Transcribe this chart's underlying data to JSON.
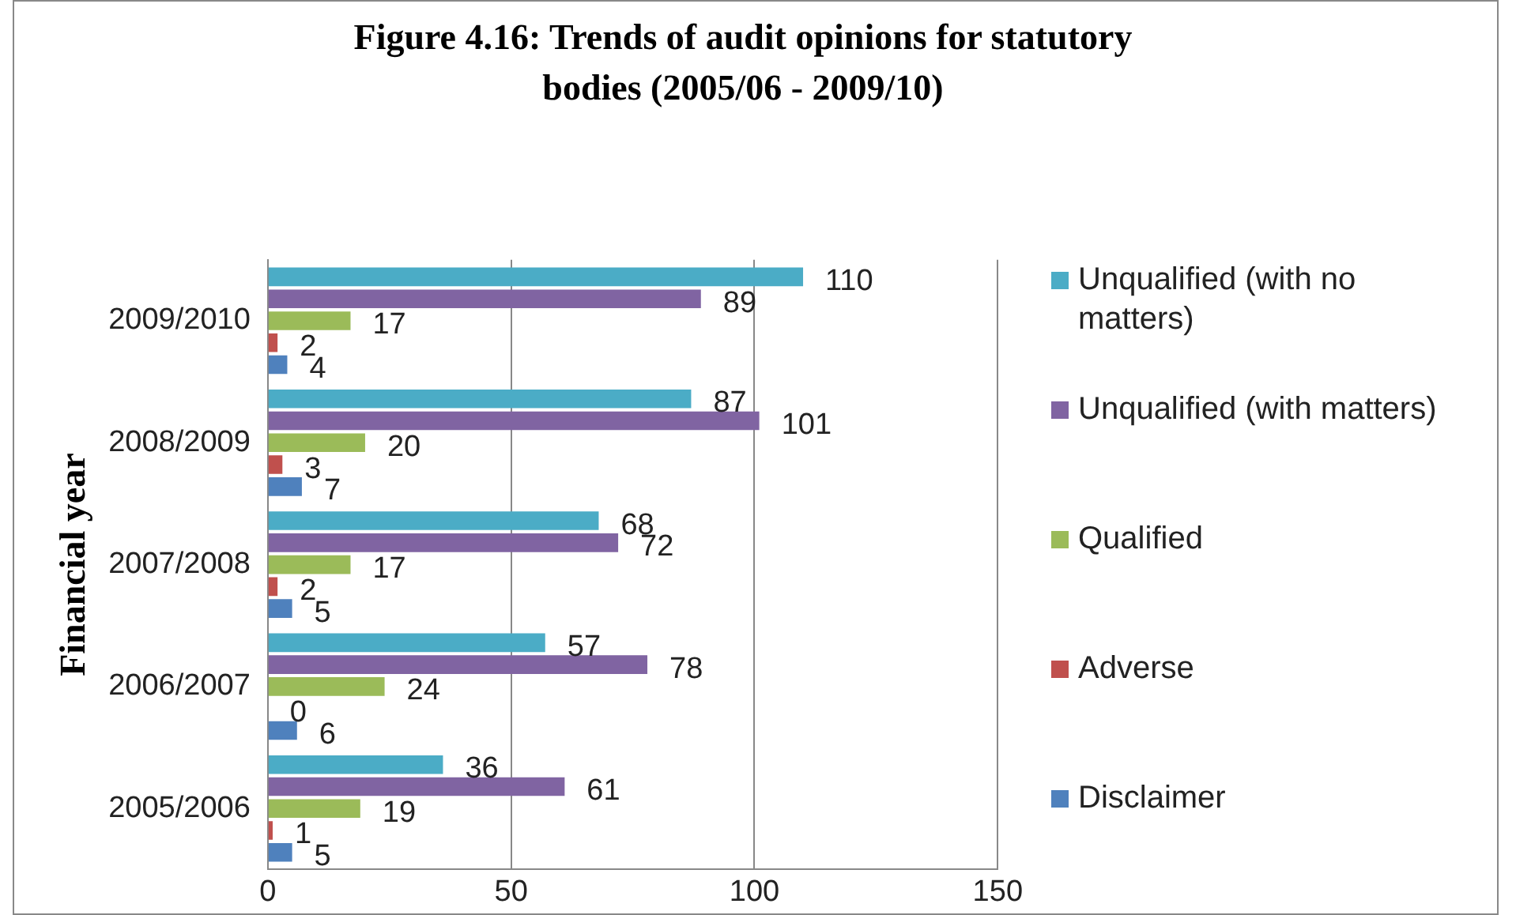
{
  "chart_data": {
    "type": "bar",
    "orientation": "horizontal",
    "title": "Figure 4.16: Trends of audit opinions for statutory bodies (2005/06 - 2009/10)",
    "ylabel": "Financial year",
    "categories": [
      "2009/2010",
      "2008/2009",
      "2007/2008",
      "2006/2007",
      "2005/2006"
    ],
    "series": [
      {
        "name": "Unqualified (with no matters)",
        "color": "#4bacc6",
        "values": [
          110,
          87,
          68,
          57,
          36
        ]
      },
      {
        "name": "Unqualified (with matters)",
        "color": "#8064a2",
        "values": [
          89,
          101,
          72,
          78,
          61
        ]
      },
      {
        "name": "Qualified",
        "color": "#9bbb59",
        "values": [
          17,
          20,
          17,
          24,
          19
        ]
      },
      {
        "name": "Adverse",
        "color": "#c0504d",
        "values": [
          2,
          3,
          2,
          0,
          1
        ]
      },
      {
        "name": "Disclaimer",
        "color": "#4f81bd",
        "values": [
          4,
          7,
          5,
          6,
          5
        ]
      }
    ],
    "xlim": [
      0,
      150
    ],
    "xticks": [
      0,
      50,
      100,
      150
    ],
    "grid": "x",
    "legend": "right",
    "data_labels": true
  }
}
